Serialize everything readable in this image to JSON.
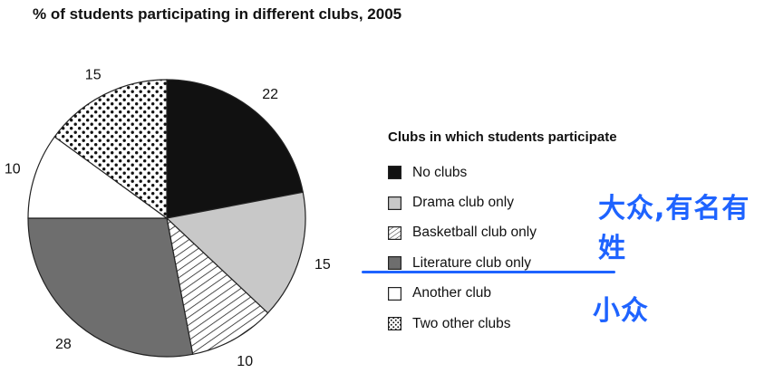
{
  "chart_data": {
    "type": "pie",
    "title": "% of students participating in different clubs, 2005",
    "legend_title": "Clubs in which students participate",
    "legend_placement": "right",
    "slices": [
      {
        "label": "No clubs",
        "value": 22,
        "color": "#111111",
        "pattern": "solid"
      },
      {
        "label": "Drama club only",
        "value": 15,
        "color": "#c8c8c8",
        "pattern": "solid"
      },
      {
        "label": "Basketball club only",
        "value": 10,
        "color": "#ffffff",
        "pattern": "diagonal-stripes"
      },
      {
        "label": "Literature club only",
        "value": 28,
        "color": "#6e6e6e",
        "pattern": "solid"
      },
      {
        "label": "Another club",
        "value": 10,
        "color": "#ffffff",
        "pattern": "solid"
      },
      {
        "label": "Two other clubs",
        "value": 15,
        "color": "#ffffff",
        "pattern": "dots"
      }
    ]
  },
  "annotations": {
    "text_1": "大众,有名有姓",
    "text_2": "小众"
  }
}
